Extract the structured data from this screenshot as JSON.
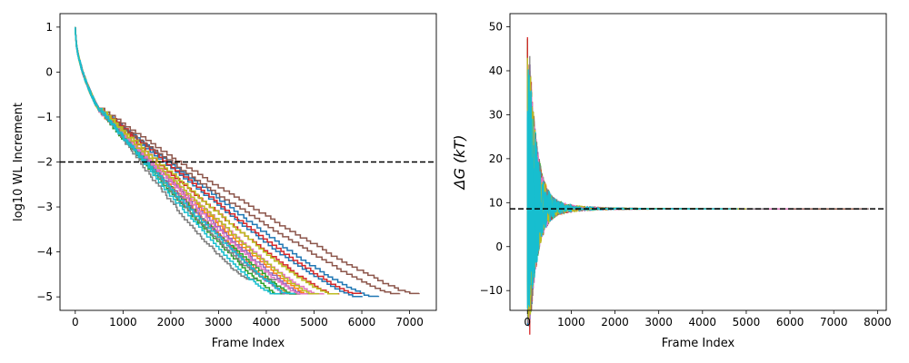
{
  "chart_data": [
    {
      "type": "line",
      "title": "",
      "xlabel": "Frame Index",
      "ylabel": "log10 WL Increment",
      "xlim": [
        -320,
        7560
      ],
      "ylim": [
        -5.3,
        1.3
      ],
      "xticks": [
        0,
        1000,
        2000,
        3000,
        4000,
        5000,
        6000,
        7000
      ],
      "yticks": [
        1,
        0,
        -1,
        -2,
        -3,
        -4,
        -5
      ],
      "hline": -2,
      "hline_style": "dashed black",
      "grid": false,
      "legend": "none",
      "series_note": "about 20 unlabeled runs, each a step curve decreasing from 1 to about -4.92",
      "series": [
        {
          "color": "#1f77b4",
          "end_x": 6350,
          "end_y": -4.98
        },
        {
          "color": "#ff7f0e",
          "end_x": 5000,
          "end_y": -4.92
        },
        {
          "color": "#2ca02c",
          "end_x": 4700,
          "end_y": -4.92
        },
        {
          "color": "#d62728",
          "end_x": 6000,
          "end_y": -4.92
        },
        {
          "color": "#9467bd",
          "end_x": 4900,
          "end_y": -4.92
        },
        {
          "color": "#8c564b",
          "end_x": 7200,
          "end_y": -4.92
        },
        {
          "color": "#e377c2",
          "end_x": 5200,
          "end_y": -4.92
        },
        {
          "color": "#7f7f7f",
          "end_x": 4200,
          "end_y": -4.6
        },
        {
          "color": "#bcbd22",
          "end_x": 5500,
          "end_y": -4.92
        },
        {
          "color": "#17becf",
          "end_x": 4600,
          "end_y": -4.92
        }
      ]
    },
    {
      "type": "line",
      "title": "",
      "xlabel": "Frame Index",
      "ylabel": "ΔG (kT)",
      "xlim": [
        -400,
        8200
      ],
      "ylim": [
        -14.5,
        53
      ],
      "xticks": [
        0,
        1000,
        2000,
        3000,
        4000,
        5000,
        6000,
        7000,
        8000
      ],
      "yticks": [
        50,
        40,
        30,
        20,
        10,
        0,
        -10
      ],
      "hline": 8.6,
      "hline_style": "dashed black",
      "grid": false,
      "legend": "none",
      "series_note": "about 20 unlabeled runs oscillating strongly near frame 0 and converging to about 8.6 kT",
      "converged_value": 8.6,
      "series": [
        {
          "color": "#1f77b4",
          "end_x": 7800
        },
        {
          "color": "#ff7f0e",
          "end_x": 7500
        },
        {
          "color": "#2ca02c",
          "end_x": 7000
        },
        {
          "color": "#d62728",
          "end_x": 6800
        },
        {
          "color": "#9467bd",
          "end_x": 6500
        },
        {
          "color": "#8c564b",
          "end_x": 7800
        },
        {
          "color": "#e377c2",
          "end_x": 6000
        },
        {
          "color": "#7f7f7f",
          "end_x": 5500
        },
        {
          "color": "#bcbd22",
          "end_x": 5000
        },
        {
          "color": "#17becf",
          "end_x": 4800
        }
      ]
    }
  ]
}
